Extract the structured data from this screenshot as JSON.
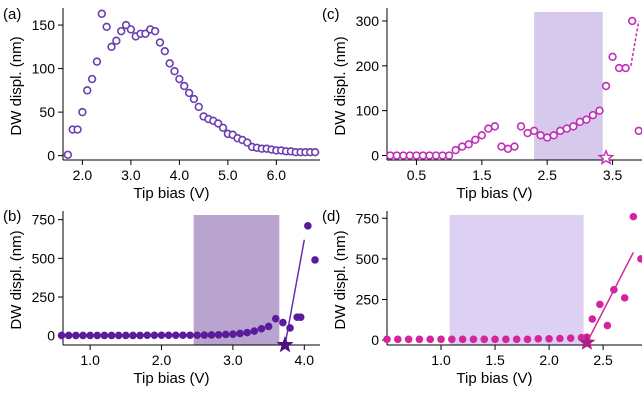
{
  "chart_data": [
    {
      "panel": "(a)",
      "type": "scatter",
      "xlabel": "Tip bias (V)",
      "ylabel": "DW displ. (nm)",
      "xlim": [
        1.6,
        6.9
      ],
      "ylim": [
        -5,
        165
      ],
      "xticks": [
        2.0,
        3.0,
        4.0,
        5.0,
        6.0
      ],
      "xtick_labels": [
        "2.0",
        "3.0",
        "4.0",
        "5.0",
        "6.0"
      ],
      "yticks": [
        0,
        50,
        100,
        150
      ],
      "ytick_labels": [
        "0",
        "50",
        "100",
        "150"
      ],
      "marker": "open-circle",
      "color": "#6a3fb0",
      "series": [
        {
          "x": [
            1.7,
            1.8,
            1.9,
            2.0,
            2.1,
            2.2,
            2.3,
            2.4,
            2.5,
            2.6,
            2.7,
            2.8,
            2.9,
            3.0,
            3.1,
            3.2,
            3.3,
            3.4,
            3.5,
            3.6,
            3.7,
            3.8,
            3.9,
            4.0,
            4.1,
            4.2,
            4.3,
            4.4,
            4.5,
            4.6,
            4.7,
            4.8,
            4.9,
            5.0,
            5.1,
            5.2,
            5.3,
            5.4,
            5.5,
            5.6,
            5.7,
            5.8,
            5.9,
            6.0,
            6.1,
            6.2,
            6.3,
            6.4,
            6.5,
            6.6,
            6.7,
            6.8
          ],
          "y": [
            1,
            30,
            30,
            50,
            75,
            88,
            108,
            163,
            148,
            125,
            132,
            143,
            150,
            145,
            137,
            140,
            140,
            145,
            143,
            130,
            120,
            106,
            97,
            88,
            80,
            72,
            65,
            56,
            45,
            42,
            40,
            37,
            32,
            25,
            24,
            20,
            18,
            15,
            10,
            9,
            8,
            8,
            7,
            6,
            6,
            5,
            5,
            4,
            4,
            4,
            4,
            4
          ]
        }
      ]
    },
    {
      "panel": "(b)",
      "type": "scatter",
      "xlabel": "Tip bias (V)",
      "ylabel": "DW displ. (nm)",
      "xlim": [
        0.62,
        4.22
      ],
      "ylim": [
        -60,
        780
      ],
      "xticks": [
        1.0,
        2.0,
        3.0,
        4.0
      ],
      "xtick_labels": [
        "1.0",
        "2.0",
        "3.0",
        "4.0"
      ],
      "yticks": [
        0,
        250,
        500,
        750
      ],
      "ytick_labels": [
        "0",
        "250",
        "500",
        "750"
      ],
      "marker": "filled-circle",
      "color": "#5a1c9a",
      "shaded_region": {
        "x": [
          2.45,
          3.65
        ],
        "color": "#b9a4d0"
      },
      "onset_marker": {
        "shape": "star",
        "x": 3.73,
        "y": -60,
        "color": "#4a1485"
      },
      "fit_line": {
        "x": [
          3.73,
          4.0
        ],
        "y": [
          -60,
          620
        ],
        "color": "#6a2fb0"
      },
      "series": [
        {
          "x": [
            0.6,
            0.7,
            0.8,
            0.9,
            1.0,
            1.1,
            1.2,
            1.3,
            1.4,
            1.5,
            1.6,
            1.7,
            1.8,
            1.9,
            2.0,
            2.1,
            2.2,
            2.3,
            2.4,
            2.5,
            2.6,
            2.7,
            2.8,
            2.9,
            3.0,
            3.1,
            3.2,
            3.3,
            3.4,
            3.5,
            3.6,
            3.7,
            3.8,
            3.95,
            4.05
          ],
          "y": [
            2,
            2,
            2,
            2,
            2,
            2,
            2,
            2,
            2,
            2,
            2,
            2,
            3,
            3,
            3,
            3,
            3,
            3,
            3,
            3,
            4,
            5,
            6,
            8,
            10,
            15,
            20,
            30,
            45,
            60,
            110,
            85,
            50,
            120,
            710
          ]
        },
        {
          "x": [
            3.9,
            4.15
          ],
          "y": [
            120,
            490
          ]
        }
      ]
    },
    {
      "panel": "(c)",
      "type": "scatter",
      "xlabel": "Tip bias (V)",
      "ylabel": "DW displ. (nm)",
      "xlim": [
        0.05,
        3.95
      ],
      "ylim": [
        -10,
        320
      ],
      "xticks": [
        0.5,
        1.5,
        2.5,
        3.5
      ],
      "xtick_labels": [
        "0.5",
        "1.5",
        "2.5",
        "3.5"
      ],
      "yticks": [
        0,
        100,
        200,
        300
      ],
      "ytick_labels": [
        "0",
        "100",
        "200",
        "300"
      ],
      "marker": "open-circle",
      "color": "#c02fb8",
      "shaded_region": {
        "x": [
          2.3,
          3.35
        ],
        "color": "#d7c9ec"
      },
      "onset_marker": {
        "shape": "star",
        "x": 3.4,
        "y": -5,
        "color": "#c02fb8"
      },
      "dashed_segment": {
        "x": [
          3.78,
          3.9
        ],
        "y": [
          200,
          300
        ],
        "color": "#c02fb8"
      },
      "series": [
        {
          "x": [
            0.1,
            0.2,
            0.3,
            0.4,
            0.5,
            0.6,
            0.7,
            0.8,
            0.9,
            1.0,
            1.1,
            1.2,
            1.3,
            1.4,
            1.5,
            1.6,
            1.7,
            1.8,
            1.9,
            2.0,
            2.1,
            2.2,
            2.3,
            2.4,
            2.5,
            2.6,
            2.7,
            2.8,
            2.9,
            3.0,
            3.1,
            3.2,
            3.3,
            3.4,
            3.5,
            3.6,
            3.7,
            3.8,
            3.9,
            4.0
          ],
          "y": [
            0,
            0,
            0,
            0,
            0,
            0,
            0,
            0,
            0,
            0,
            12,
            20,
            25,
            35,
            45,
            60,
            65,
            20,
            15,
            20,
            65,
            50,
            55,
            45,
            40,
            45,
            55,
            60,
            65,
            75,
            80,
            90,
            100,
            155,
            220,
            195,
            195,
            300,
            55,
            55
          ]
        }
      ]
    },
    {
      "panel": "(d)",
      "type": "scatter",
      "xlabel": "Tip bias (V)",
      "ylabel": "DW displ. (nm)",
      "xlim": [
        0.5,
        2.86
      ],
      "ylim": [
        -30,
        770
      ],
      "xticks": [
        1.0,
        1.5,
        2.0,
        2.5
      ],
      "xtick_labels": [
        "1.0",
        "1.5",
        "2.0",
        "2.5"
      ],
      "yticks": [
        0,
        250,
        500,
        750
      ],
      "ytick_labels": [
        "0",
        "250",
        "500",
        "750"
      ],
      "marker": "filled-circle",
      "color": "#d6249f",
      "shaded_region": {
        "x": [
          1.08,
          2.32
        ],
        "color": "#ddd1f3"
      },
      "onset_marker": {
        "shape": "star",
        "x": 2.35,
        "y": -15,
        "color": "#b01e8a"
      },
      "fit_line": {
        "x": [
          2.35,
          2.78
        ],
        "y": [
          -15,
          540
        ],
        "color": "#d6249f"
      },
      "series": [
        {
          "x": [
            0.5,
            0.6,
            0.7,
            0.8,
            0.9,
            1.0,
            1.1,
            1.2,
            1.3,
            1.4,
            1.5,
            1.6,
            1.7,
            1.8,
            1.9,
            2.0,
            2.1,
            2.2,
            2.3,
            2.35,
            2.4,
            2.47,
            2.54,
            2.6,
            2.7,
            2.78,
            2.85
          ],
          "y": [
            5,
            5,
            5,
            5,
            5,
            5,
            5,
            5,
            5,
            5,
            5,
            5,
            5,
            5,
            8,
            8,
            10,
            12,
            15,
            18,
            130,
            220,
            90,
            310,
            260,
            760,
            500
          ]
        }
      ]
    }
  ]
}
